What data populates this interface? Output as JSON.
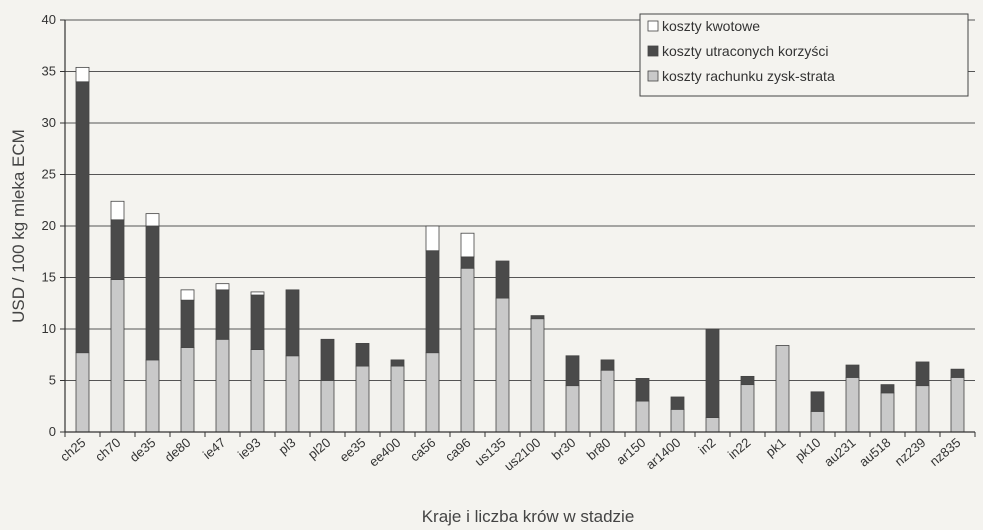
{
  "chart_data": {
    "type": "bar",
    "stacked": true,
    "xlabel": "Kraje i liczba krów w stadzie",
    "ylabel": "USD / 100 kg mleka ECM",
    "ylim": [
      0,
      40
    ],
    "yticks": [
      0,
      5,
      10,
      15,
      20,
      25,
      30,
      35,
      40
    ],
    "grid": true,
    "legend_position": "top-right",
    "categories": [
      "ch25",
      "ch70",
      "de35",
      "de80",
      "ie47",
      "ie93",
      "pl3",
      "pl20",
      "ee35",
      "ee400",
      "ca56",
      "ca96",
      "us135",
      "us2100",
      "br30",
      "br80",
      "ar150",
      "ar1400",
      "in2",
      "in22",
      "pk1",
      "pk10",
      "au231",
      "au518",
      "nz239",
      "nz835"
    ],
    "series": [
      {
        "name": "koszty rachunku zysk-strata",
        "color": "#c9c9c9",
        "values": [
          7.7,
          14.8,
          7.0,
          8.2,
          9.0,
          8.0,
          7.4,
          5.0,
          6.4,
          6.4,
          7.7,
          15.9,
          13.0,
          11.0,
          4.5,
          6.0,
          3.0,
          2.2,
          1.4,
          4.6,
          8.4,
          2.0,
          5.3,
          3.8,
          4.5,
          5.3
        ]
      },
      {
        "name": "koszty utraconych korzyści",
        "color": "#4a4a4a",
        "values": [
          26.3,
          5.8,
          13.0,
          4.6,
          4.8,
          5.3,
          6.4,
          4.0,
          2.2,
          0.6,
          9.9,
          1.1,
          3.6,
          0.3,
          2.9,
          1.0,
          2.2,
          1.2,
          8.6,
          0.8,
          0.0,
          1.9,
          1.2,
          0.8,
          2.3,
          0.8
        ]
      },
      {
        "name": "koszty kwotowe",
        "color": "#ffffff",
        "values": [
          1.4,
          1.8,
          1.2,
          1.0,
          0.6,
          0.3,
          0.0,
          0.0,
          0.0,
          0.0,
          2.4,
          2.3,
          0.0,
          0.0,
          0.0,
          0.0,
          0.0,
          0.0,
          0.0,
          0.0,
          0.0,
          0.0,
          0.0,
          0.0,
          0.0,
          0.0
        ]
      }
    ],
    "legend_order": [
      "koszty kwotowe",
      "koszty utraconych korzyści",
      "koszty rachunku zysk-strata"
    ]
  }
}
